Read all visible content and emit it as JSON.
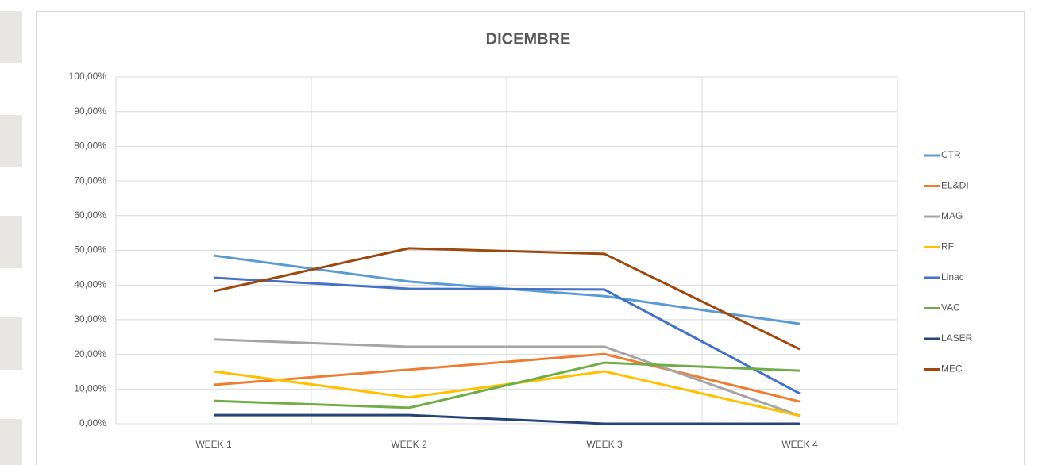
{
  "chart_data": {
    "type": "line",
    "title": "DICEMBRE",
    "categories": [
      "WEEK 1",
      "WEEK 2",
      "WEEK 3",
      "WEEK 4"
    ],
    "series": [
      {
        "name": "CTR",
        "color": "#5b9bd5",
        "values": [
          48.5,
          41,
          36.8,
          28.8
        ]
      },
      {
        "name": "EL&DI",
        "color": "#ed7d31",
        "values": [
          11.2,
          15.6,
          20.1,
          6.4
        ]
      },
      {
        "name": "MAG",
        "color": "#a5a5a5",
        "values": [
          24.3,
          22.2,
          22.2,
          2.3
        ]
      },
      {
        "name": "RF",
        "color": "#ffc000",
        "values": [
          15.1,
          7.6,
          15.1,
          2.3
        ]
      },
      {
        "name": "Linac",
        "color": "#4472c4",
        "values": [
          42.1,
          38.9,
          38.7,
          8.7
        ]
      },
      {
        "name": "VAC",
        "color": "#70ad47",
        "values": [
          6.6,
          4.6,
          17.6,
          15.3
        ]
      },
      {
        "name": "LASER",
        "color": "#264478",
        "values": [
          2.5,
          2.5,
          0,
          0
        ]
      },
      {
        "name": "MEC",
        "color": "#9e480e",
        "values": [
          38.2,
          50.6,
          49,
          21.5
        ]
      }
    ],
    "ylim": [
      0,
      100
    ],
    "yticks": [
      {
        "value": 0,
        "label": "0,00%"
      },
      {
        "value": 10,
        "label": "10,00%"
      },
      {
        "value": 20,
        "label": "20,00%"
      },
      {
        "value": 30,
        "label": "30,00%"
      },
      {
        "value": 40,
        "label": "40,00%"
      },
      {
        "value": 50,
        "label": "50,00%"
      },
      {
        "value": 60,
        "label": "60,00%"
      },
      {
        "value": 70,
        "label": "70,00%"
      },
      {
        "value": 80,
        "label": "80,00%"
      },
      {
        "value": 90,
        "label": "90,00%"
      },
      {
        "value": 100,
        "label": "100,00%"
      }
    ],
    "grid": true,
    "legend": "right"
  }
}
